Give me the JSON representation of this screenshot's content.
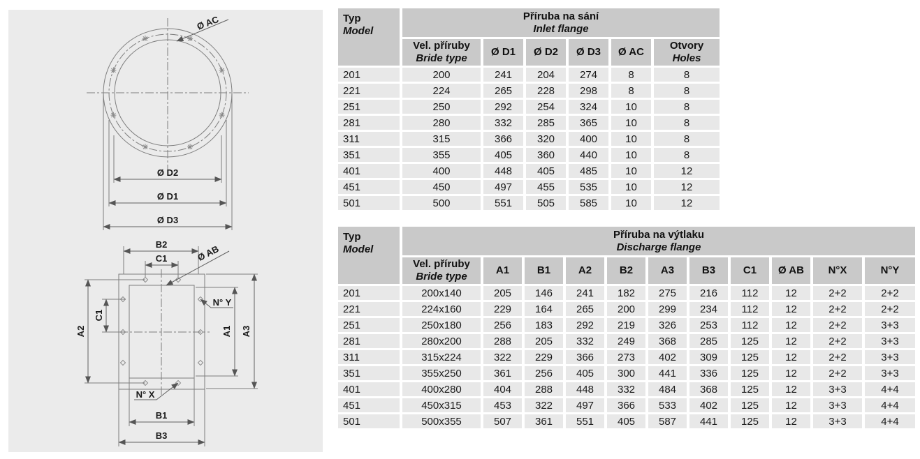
{
  "colors": {
    "header_bg": "#c9c9c9",
    "row_bg": "#e8e8e8",
    "panel_bg": "#ebebeb",
    "text": "#1a1a1a"
  },
  "drawing_panel": {
    "inlet_drawing": {
      "labels": {
        "ac": "Ø AC",
        "d2": "Ø D2",
        "d1": "Ø D1",
        "d3": "Ø D3"
      }
    },
    "discharge_drawing": {
      "labels": {
        "b2": "B2",
        "c1_top": "C1",
        "ab": "Ø AB",
        "ny": "N° Y",
        "c1_left": "C1",
        "a2": "A2",
        "a1": "A1",
        "a3": "A3",
        "nx": "N° X",
        "b1": "B1",
        "b3": "B3"
      }
    }
  },
  "tables": [
    {
      "name": "inlet-flange-table",
      "corner": {
        "cz": "Typ",
        "en": "Model"
      },
      "title": {
        "cz": "Příruba na sání",
        "en": "Inlet flange"
      },
      "size_col": {
        "cz": "Vel. příruby",
        "en": "Bride type"
      },
      "cols": [
        "Ø D1",
        "Ø D2",
        "Ø D3",
        "Ø AC"
      ],
      "holes_col": {
        "cz": "Otvory",
        "en": "Holes"
      },
      "rows": [
        [
          "201",
          "200",
          "241",
          "204",
          "274",
          "8",
          "8"
        ],
        [
          "221",
          "224",
          "265",
          "228",
          "298",
          "8",
          "8"
        ],
        [
          "251",
          "250",
          "292",
          "254",
          "324",
          "10",
          "8"
        ],
        [
          "281",
          "280",
          "332",
          "285",
          "365",
          "10",
          "8"
        ],
        [
          "311",
          "315",
          "366",
          "320",
          "400",
          "10",
          "8"
        ],
        [
          "351",
          "355",
          "405",
          "360",
          "440",
          "10",
          "8"
        ],
        [
          "401",
          "400",
          "448",
          "405",
          "485",
          "10",
          "12"
        ],
        [
          "451",
          "450",
          "497",
          "455",
          "535",
          "10",
          "12"
        ],
        [
          "501",
          "500",
          "551",
          "505",
          "585",
          "10",
          "12"
        ]
      ]
    },
    {
      "name": "discharge-flange-table",
      "corner": {
        "cz": "Typ",
        "en": "Model"
      },
      "title": {
        "cz": "Příruba na výtlaku",
        "en": "Discharge flange"
      },
      "size_col": {
        "cz": "Vel. příruby",
        "en": "Bride type"
      },
      "cols": [
        "A1",
        "B1",
        "A2",
        "B2",
        "A3",
        "B3",
        "C1",
        "Ø AB",
        "N°X",
        "N°Y"
      ],
      "rows": [
        [
          "201",
          "200x140",
          "205",
          "146",
          "241",
          "182",
          "275",
          "216",
          "112",
          "12",
          "2+2",
          "2+2"
        ],
        [
          "221",
          "224x160",
          "229",
          "164",
          "265",
          "200",
          "299",
          "234",
          "112",
          "12",
          "2+2",
          "2+2"
        ],
        [
          "251",
          "250x180",
          "256",
          "183",
          "292",
          "219",
          "326",
          "253",
          "112",
          "12",
          "2+2",
          "3+3"
        ],
        [
          "281",
          "280x200",
          "288",
          "205",
          "332",
          "249",
          "368",
          "285",
          "125",
          "12",
          "2+2",
          "3+3"
        ],
        [
          "311",
          "315x224",
          "322",
          "229",
          "366",
          "273",
          "402",
          "309",
          "125",
          "12",
          "2+2",
          "3+3"
        ],
        [
          "351",
          "355x250",
          "361",
          "256",
          "405",
          "300",
          "441",
          "336",
          "125",
          "12",
          "2+2",
          "3+3"
        ],
        [
          "401",
          "400x280",
          "404",
          "288",
          "448",
          "332",
          "484",
          "368",
          "125",
          "12",
          "3+3",
          "4+4"
        ],
        [
          "451",
          "450x315",
          "453",
          "322",
          "497",
          "366",
          "533",
          "402",
          "125",
          "12",
          "3+3",
          "4+4"
        ],
        [
          "501",
          "500x355",
          "507",
          "361",
          "551",
          "405",
          "587",
          "441",
          "125",
          "12",
          "3+3",
          "4+4"
        ]
      ]
    }
  ]
}
